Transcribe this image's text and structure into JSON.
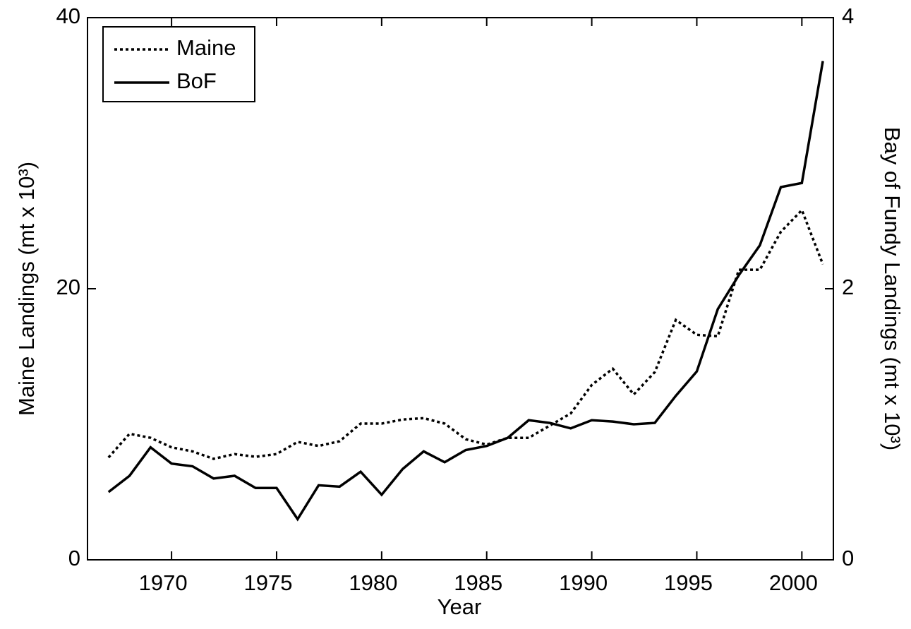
{
  "chart_data": {
    "type": "line",
    "xlabel": "Year",
    "ylabel": "Maine Landings (mt x 10³)",
    "y2label": "Bay of Fundy Landings (mt x 10³)",
    "x": [
      1967,
      1968,
      1969,
      1970,
      1971,
      1972,
      1973,
      1974,
      1975,
      1976,
      1977,
      1978,
      1979,
      1980,
      1981,
      1982,
      1983,
      1984,
      1985,
      1986,
      1987,
      1988,
      1989,
      1990,
      1991,
      1992,
      1993,
      1994,
      1995,
      1996,
      1997,
      1998,
      1999,
      2000,
      2001
    ],
    "series": [
      {
        "name": "Maine",
        "color": "#000000",
        "dash": "dotted",
        "values": [
          7.55,
          9.3,
          9.0,
          8.3,
          8.0,
          7.45,
          7.8,
          7.6,
          7.8,
          8.7,
          8.4,
          8.75,
          10.05,
          10.05,
          10.35,
          10.45,
          10.05,
          8.9,
          8.5,
          9.0,
          9.0,
          9.9,
          10.8,
          12.9,
          14.1,
          12.2,
          13.85,
          17.7,
          16.6,
          16.5,
          21.4,
          21.4,
          24.2,
          25.8,
          21.8
        ]
      },
      {
        "name": "BoF",
        "color": "#000000",
        "dash": "solid",
        "axis": "y2",
        "values": [
          0.5,
          0.62,
          0.83,
          0.71,
          0.69,
          0.6,
          0.62,
          0.53,
          0.53,
          0.3,
          0.55,
          0.54,
          0.65,
          0.48,
          0.67,
          0.8,
          0.72,
          0.81,
          0.84,
          0.9,
          1.03,
          1.01,
          0.97,
          1.03,
          1.02,
          1.0,
          1.01,
          1.21,
          1.39,
          1.85,
          2.1,
          2.32,
          2.75,
          2.78,
          3.68
        ]
      }
    ],
    "xlim": [
      1966,
      2001.5
    ],
    "xticks": [
      1970,
      1975,
      1980,
      1985,
      1990,
      1995,
      2000
    ],
    "ylim": [
      0,
      40
    ],
    "yticks": [
      0,
      20,
      40
    ],
    "y2lim": [
      0,
      4
    ],
    "y2ticks": [
      0,
      2,
      4
    ],
    "legend": "upper left"
  }
}
